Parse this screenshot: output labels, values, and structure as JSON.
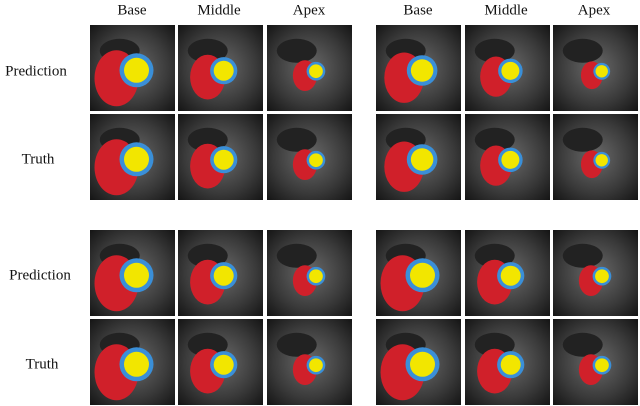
{
  "header_groups": [
    [
      "Base",
      "Middle",
      "Apex"
    ],
    [
      "Base",
      "Middle",
      "Apex"
    ]
  ],
  "row_labels": [
    "Prediction",
    "Truth",
    "Prediction",
    "Truth"
  ]
}
